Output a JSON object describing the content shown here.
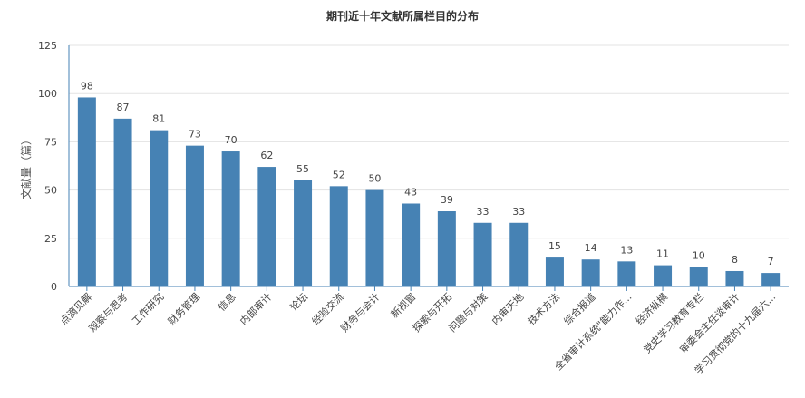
{
  "chart_data": {
    "type": "bar",
    "title": "期刊近十年文献所属栏目的分布",
    "xlabel": "",
    "ylabel": "文献量（篇）",
    "ylim": [
      0,
      125
    ],
    "yticks": [
      0,
      25,
      50,
      75,
      100,
      125
    ],
    "grid": true,
    "legend": "none",
    "bar_color": "#4682b4",
    "categories": [
      "点滴见解",
      "观察与思考",
      "工作研究",
      "财务管理",
      "信息",
      "内部审计",
      "论坛",
      "经验交流",
      "财务与会计",
      "新视窗",
      "探索与开拓",
      "问题与对策",
      "内审天地",
      "技术方法",
      "综合报道",
      "全省审计系统\"能力作...",
      "经济纵横",
      "党史学习教育专栏",
      "审委会主任谈审计",
      "学习贯彻党的十九届六..."
    ],
    "values": [
      98,
      87,
      81,
      73,
      70,
      62,
      55,
      52,
      50,
      43,
      39,
      33,
      33,
      15,
      14,
      13,
      11,
      10,
      8,
      7
    ]
  }
}
